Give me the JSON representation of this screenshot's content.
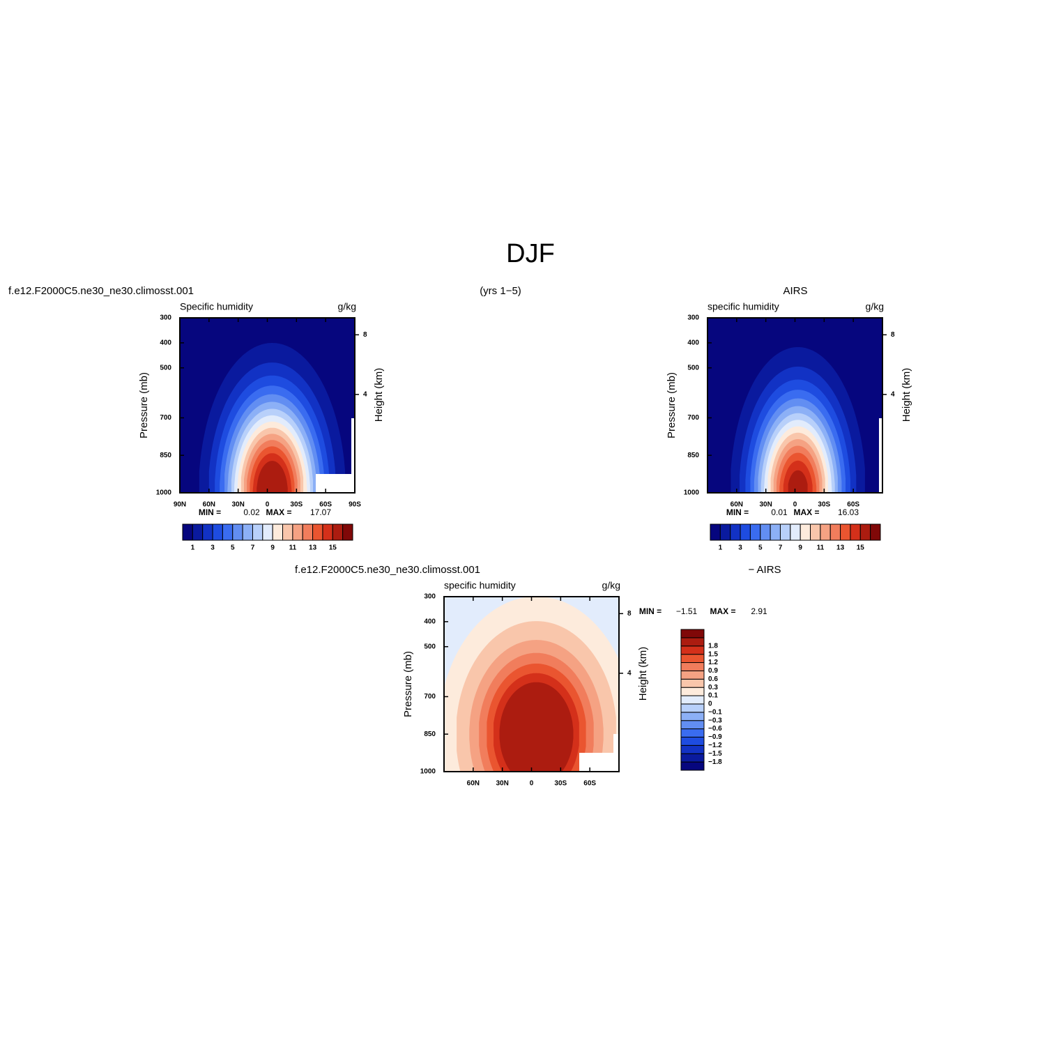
{
  "title": "DJF",
  "subtitle": "(yrs 1−5)",
  "chart_data": [
    {
      "type": "contour",
      "title": "f.e12.F2000C5.ne30_ne30.climosst.001",
      "subtitle": "Specific humidity",
      "units": "g/kg",
      "ylabel": "Pressure (mb)",
      "y2label": "Height (km)",
      "xlim": [
        90,
        -90
      ],
      "xticks": [
        {
          "value": 90,
          "label": "90N"
        },
        {
          "value": 60,
          "label": "60N"
        },
        {
          "value": 30,
          "label": "30N"
        },
        0,
        {
          "value": -30,
          "label": "30S"
        },
        {
          "value": -60,
          "label": "60S"
        },
        {
          "value": -90,
          "label": "90S"
        }
      ],
      "ylim": [
        1000,
        300
      ],
      "yticks": [
        300,
        400,
        500,
        700,
        850,
        1000
      ],
      "y2lim": [
        0,
        9.63
      ],
      "y2ticks": [
        4,
        8
      ],
      "min_label": "MIN =",
      "min": 0.02,
      "max_label": "MAX =",
      "max": 17.07,
      "colorbar": "horizontal",
      "levels": [
        1,
        2,
        3,
        4,
        5,
        6,
        7,
        8,
        9,
        10,
        11,
        12,
        13,
        14,
        15
      ],
      "colorbar_ticks": [
        1,
        3,
        5,
        7,
        9,
        11,
        13,
        15
      ],
      "colors": [
        "#06067e",
        "#0a1a9e",
        "#1232c4",
        "#1e4ce0",
        "#3a6cf0",
        "#628ef2",
        "#8cb0f6",
        "#b8d0fa",
        "#e2ecfc",
        "#fdebdc",
        "#f9c6ab",
        "#f5a283",
        "#f17d5c",
        "#ea5530",
        "#d4301a",
        "#ac1c10",
        "#800808"
      ]
    },
    {
      "type": "contour",
      "title": "AIRS",
      "subtitle": "specific humidity",
      "units": "g/kg",
      "ylabel": "Pressure (mb)",
      "y2label": "Height (km)",
      "xlim": [
        90,
        -90
      ],
      "xticks": [
        {
          "value": 60,
          "label": "60N"
        },
        {
          "value": 30,
          "label": "30N"
        },
        0,
        {
          "value": -30,
          "label": "30S"
        },
        {
          "value": -60,
          "label": "60S"
        }
      ],
      "ylim": [
        1000,
        300
      ],
      "yticks": [
        300,
        400,
        500,
        700,
        850,
        1000
      ],
      "y2lim": [
        0,
        9.63
      ],
      "y2ticks": [
        4,
        8
      ],
      "min_label": "MIN =",
      "min": 0.01,
      "max_label": "MAX =",
      "max": 16.03,
      "colorbar": "horizontal",
      "levels": [
        1,
        2,
        3,
        4,
        5,
        6,
        7,
        8,
        9,
        10,
        11,
        12,
        13,
        14,
        15
      ],
      "colorbar_ticks": [
        1,
        3,
        5,
        7,
        9,
        11,
        13,
        15
      ],
      "colors": [
        "#06067e",
        "#0a1a9e",
        "#1232c4",
        "#1e4ce0",
        "#3a6cf0",
        "#628ef2",
        "#8cb0f6",
        "#b8d0fa",
        "#e2ecfc",
        "#fdebdc",
        "#f9c6ab",
        "#f5a283",
        "#f17d5c",
        "#ea5530",
        "#d4301a",
        "#ac1c10",
        "#800808"
      ]
    },
    {
      "type": "contour",
      "title": "f.e12.F2000C5.ne30_ne30.climosst.001",
      "title_right": "− AIRS",
      "subtitle": "specific humidity",
      "units": "g/kg",
      "ylabel": "Pressure (mb)",
      "y2label": "Height (km)",
      "xlim": [
        90,
        -90
      ],
      "xticks": [
        {
          "value": 60,
          "label": "60N"
        },
        {
          "value": 30,
          "label": "30N"
        },
        0,
        {
          "value": -30,
          "label": "30S"
        },
        {
          "value": -60,
          "label": "60S"
        }
      ],
      "ylim": [
        1000,
        300
      ],
      "yticks": [
        300,
        400,
        500,
        700,
        850,
        1000
      ],
      "y2lim": [
        0,
        9.63
      ],
      "y2ticks": [
        4,
        8
      ],
      "min_label": "MIN =",
      "min": {
        "value": -1.51,
        "label": "−1.51"
      },
      "max_label": "MAX =",
      "max": 2.91,
      "colorbar": "vertical",
      "levels": [
        {
          "value": -1.8,
          "label": "−1.8"
        },
        {
          "value": -1.5,
          "label": "−1.5"
        },
        {
          "value": -1.2,
          "label": "−1.2"
        },
        {
          "value": -0.9,
          "label": "−0.9"
        },
        {
          "value": -0.6,
          "label": "−0.6"
        },
        {
          "value": -0.3,
          "label": "−0.3"
        },
        {
          "value": -0.1,
          "label": "−0.1"
        },
        0,
        0.1,
        0.3,
        0.6,
        0.9,
        1.2,
        1.5,
        1.8
      ],
      "colors": [
        "#06067e",
        "#0a1a9e",
        "#1232c4",
        "#1e4ce0",
        "#3a6cf0",
        "#628ef2",
        "#8cb0f6",
        "#b8d0fa",
        "#e2ecfc",
        "#fdebdc",
        "#f9c6ab",
        "#f5a283",
        "#f17d5c",
        "#ea5530",
        "#d4301a",
        "#ac1c10",
        "#800808"
      ]
    }
  ]
}
